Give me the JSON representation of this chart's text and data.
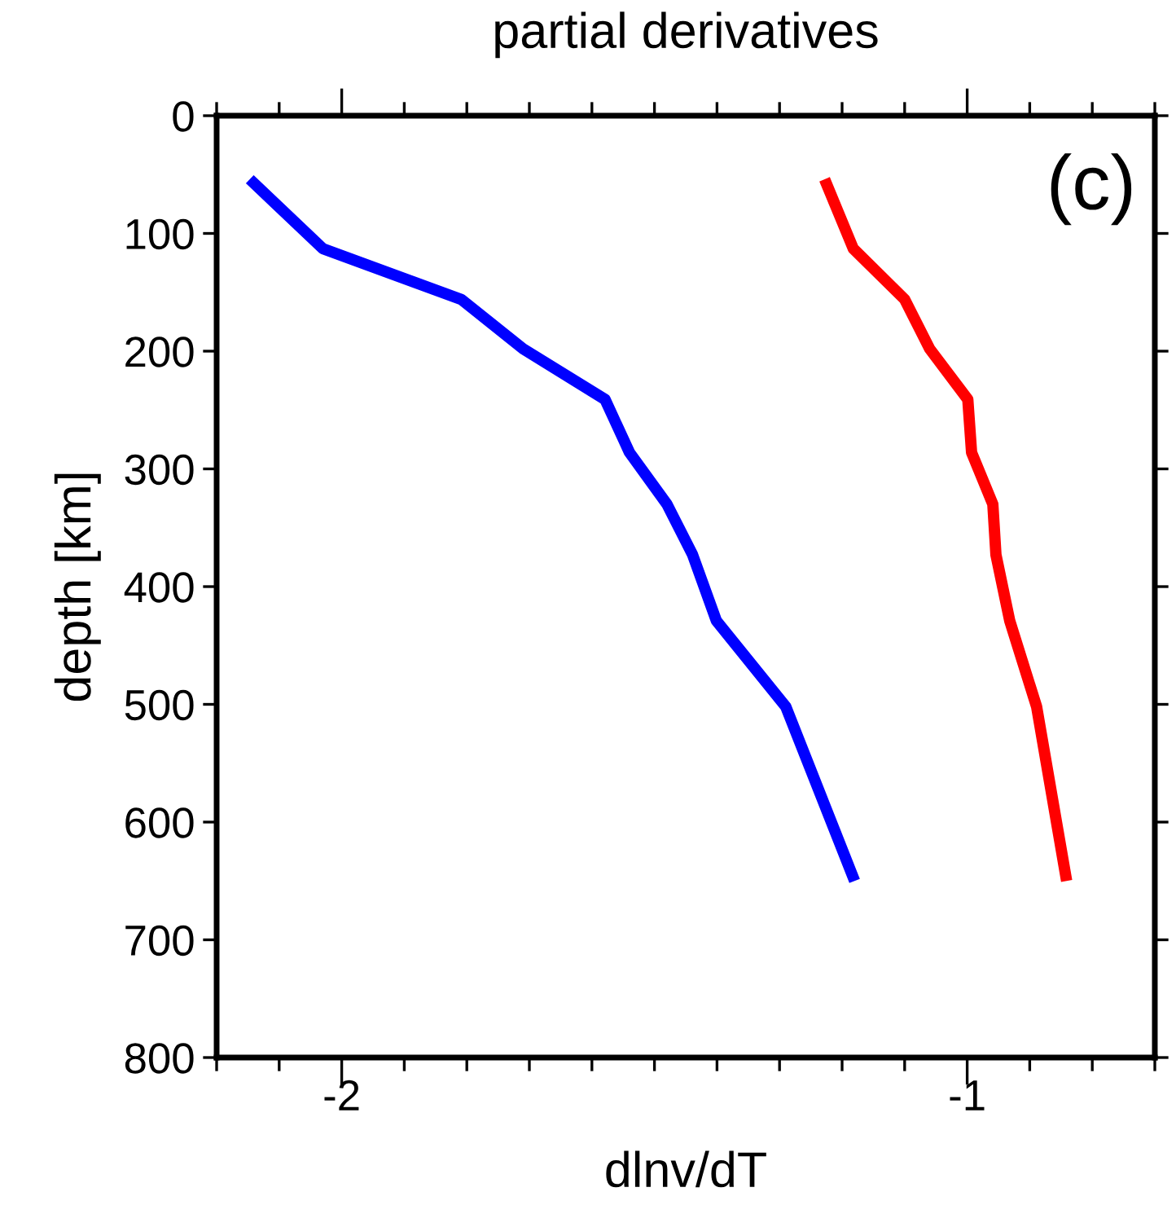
{
  "chart_data": {
    "type": "line",
    "title": "partial derivatives",
    "xlabel": "dlnv/dT",
    "ylabel": "depth [km]",
    "xlim": [
      -2.2,
      -0.7
    ],
    "ylim": [
      800,
      0
    ],
    "xticks": [
      {
        "value": -2.2,
        "label": null
      },
      {
        "value": -2.1,
        "label": null
      },
      -2,
      {
        "value": -1.9,
        "label": null
      },
      {
        "value": -1.8,
        "label": null
      },
      {
        "value": -1.7,
        "label": null
      },
      {
        "value": -1.6,
        "label": null
      },
      {
        "value": -1.5,
        "label": null
      },
      {
        "value": -1.4,
        "label": null
      },
      {
        "value": -1.3,
        "label": null
      },
      {
        "value": -1.2,
        "label": null
      },
      {
        "value": -1.1,
        "label": null
      },
      -1,
      {
        "value": -0.9,
        "label": null
      },
      {
        "value": -0.8,
        "label": null
      },
      {
        "value": -0.7,
        "label": null
      }
    ],
    "yticks": [
      0,
      100,
      200,
      300,
      400,
      500,
      600,
      700,
      800
    ],
    "grid": false,
    "line_style": "solid",
    "marker": "none",
    "annotations": [
      "(c)"
    ],
    "series": [
      {
        "color": "#0000ff",
        "x": [
          -2.147,
          -2.03,
          -1.809,
          -1.71,
          -1.579,
          -1.54,
          -1.48,
          -1.439,
          -1.401,
          -1.29,
          -1.18
        ],
        "values": [
          54,
          113,
          156,
          198,
          241,
          286,
          330,
          373,
          429,
          502,
          650
        ]
      },
      {
        "color": "#ff0000",
        "x": [
          -1.228,
          -1.182,
          -1.1,
          -1.06,
          -0.999,
          -0.993,
          -0.959,
          -0.954,
          -0.932,
          -0.889,
          -0.841
        ],
        "values": [
          54,
          113,
          156,
          198,
          241,
          286,
          330,
          373,
          429,
          502,
          650
        ]
      }
    ]
  }
}
